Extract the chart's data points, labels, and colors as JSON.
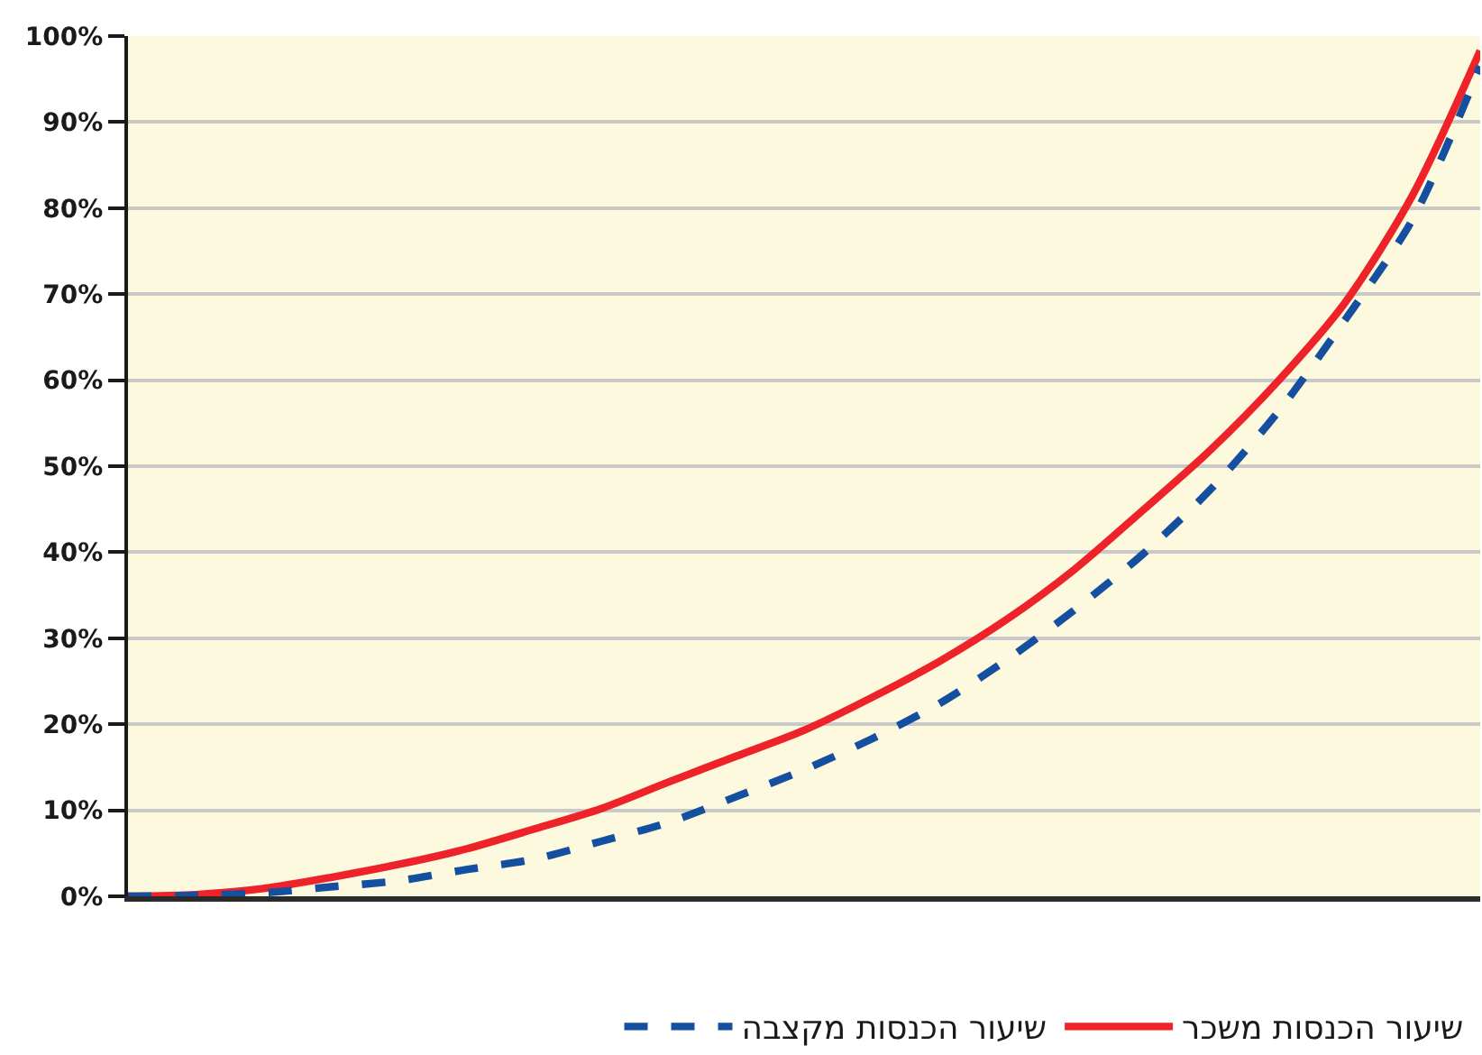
{
  "chart_data": {
    "type": "line",
    "categories": [
      null,
      null,
      null,
      null,
      null,
      null,
      null,
      null,
      null,
      null,
      null,
      null,
      null,
      null,
      null,
      null,
      null,
      null,
      null,
      null,
      null
    ],
    "series": [
      {
        "name": "שיעור הכנסות משכר",
        "color": "#ee2229",
        "line_style": "solid",
        "values": [
          0,
          0.2,
          0.9,
          2.2,
          3.7,
          5.5,
          7.8,
          10.2,
          13.3,
          16.3,
          19.3,
          23.1,
          27.3,
          32.2,
          38,
          44.8,
          51.8,
          59.8,
          69,
          81.5,
          98.3
        ]
      },
      {
        "name": "שיעור הכנסות מקצבה",
        "color": "#1550a0",
        "line_style": "dashed",
        "values": [
          0,
          0.1,
          0.4,
          1.1,
          1.8,
          3.1,
          4.3,
          6.4,
          8.6,
          11.6,
          14.7,
          18.3,
          22.4,
          27.5,
          33.3,
          39.7,
          47.2,
          56.2,
          67,
          78.7,
          96.5
        ]
      }
    ],
    "ylim": [
      0,
      100
    ],
    "yticks": [
      {
        "value": 0,
        "label": "0%"
      },
      {
        "value": 10,
        "label": "10%"
      },
      {
        "value": 20,
        "label": "20%"
      },
      {
        "value": 30,
        "label": "30%"
      },
      {
        "value": 40,
        "label": "40%"
      },
      {
        "value": 50,
        "label": "50%"
      },
      {
        "value": 60,
        "label": "60%"
      },
      {
        "value": 70,
        "label": "70%"
      },
      {
        "value": 80,
        "label": "80%"
      },
      {
        "value": 90,
        "label": "90%"
      },
      {
        "value": 100,
        "label": "100%"
      }
    ],
    "grid": "y",
    "legend": "bottom",
    "tick_labels": "y"
  }
}
